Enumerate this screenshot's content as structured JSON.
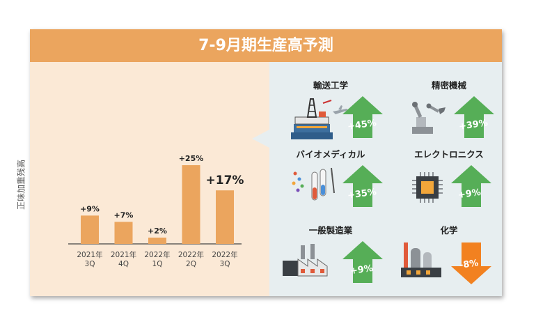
{
  "header": {
    "title": "7-9月期生産高予測"
  },
  "chart_data": {
    "type": "bar",
    "ylabel": "正味加重残高",
    "categories": [
      [
        "2021年",
        "3Q"
      ],
      [
        "2021年",
        "4Q"
      ],
      [
        "2022年",
        "1Q"
      ],
      [
        "2022年",
        "2Q"
      ],
      [
        "2022年",
        "3Q"
      ]
    ],
    "values": [
      9,
      7,
      2,
      25,
      17
    ],
    "data_labels": [
      "+9%",
      "+7%",
      "+2%",
      "+25%",
      "+17%"
    ],
    "ylim": [
      0,
      27
    ],
    "highlight_index": 4,
    "bar_color": "#eba55e",
    "grid": false
  },
  "sectors": [
    {
      "name": "輸送工学",
      "change": "+45%",
      "direction": "up",
      "icon": "oil-rig-airplane-icon"
    },
    {
      "name": "精密機械",
      "change": "+39%",
      "direction": "up",
      "icon": "robot-arm-icon"
    },
    {
      "name": "バイオメディカル",
      "change": "+35%",
      "direction": "up",
      "icon": "test-tubes-icon"
    },
    {
      "name": "エレクトロニクス",
      "change": "+9%",
      "direction": "up",
      "icon": "microchip-icon"
    },
    {
      "name": "一般製造業",
      "change": "+9%",
      "direction": "up",
      "icon": "factory-icon"
    },
    {
      "name": "化学",
      "change": "-8%",
      "direction": "down",
      "icon": "chemical-plant-icon"
    }
  ],
  "colors": {
    "header": "#eba55e",
    "left_panel": "#fbe9d6",
    "right_panel": "#e7eef0",
    "up": "#56ae57",
    "down": "#f28120"
  }
}
